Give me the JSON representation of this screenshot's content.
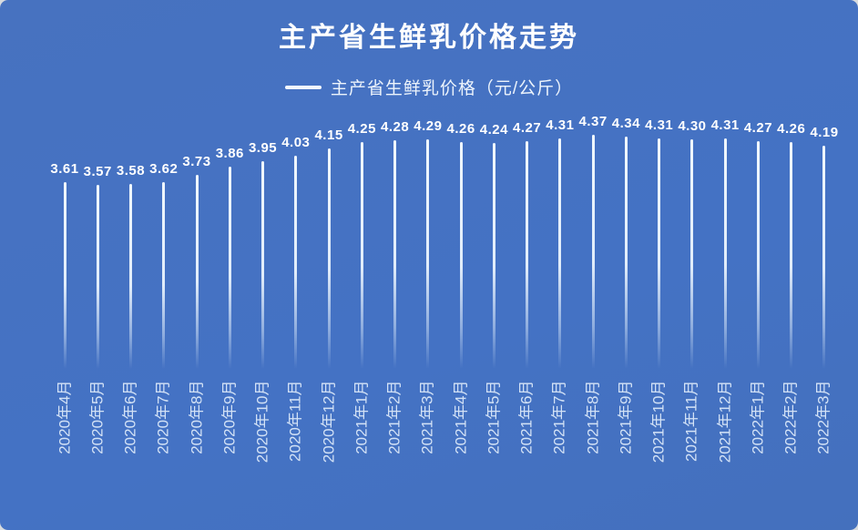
{
  "chart_data": {
    "type": "bar",
    "variant": "needle-stem",
    "title": "主产省生鲜乳价格走势",
    "legend": "主产省生鲜乳价格（元/公斤）",
    "categories": [
      "2020年4月",
      "2020年5月",
      "2020年6月",
      "2020年7月",
      "2020年8月",
      "2020年9月",
      "2020年10月",
      "2020年11月",
      "2020年12月",
      "2021年1月",
      "2021年2月",
      "2021年3月",
      "2021年4月",
      "2021年5月",
      "2021年6月",
      "2021年7月",
      "2021年8月",
      "2021年9月",
      "2021年10月",
      "2021年11月",
      "2021年12月",
      "2022年1月",
      "2022年2月",
      "2022年3月"
    ],
    "values": [
      3.61,
      3.57,
      3.58,
      3.62,
      3.73,
      3.86,
      3.95,
      4.03,
      4.15,
      4.25,
      4.28,
      4.29,
      4.26,
      4.24,
      4.27,
      4.31,
      4.37,
      4.34,
      4.31,
      4.3,
      4.31,
      4.27,
      4.26,
      4.19
    ],
    "xlabel": "",
    "ylabel": "",
    "value_axis_visible": false,
    "grid": false,
    "value_label_position": "above",
    "category_label_rotation": -90,
    "legend_position": "top-center"
  },
  "colors": {
    "panel_background": "#4472c4",
    "page_background": "#d8dbde",
    "title_text": "#ffffff",
    "value_label_text": "#ffffff",
    "category_label_text": "#d3e2f6",
    "needle": "#f3faff",
    "legend_text": "#edf4fc"
  }
}
